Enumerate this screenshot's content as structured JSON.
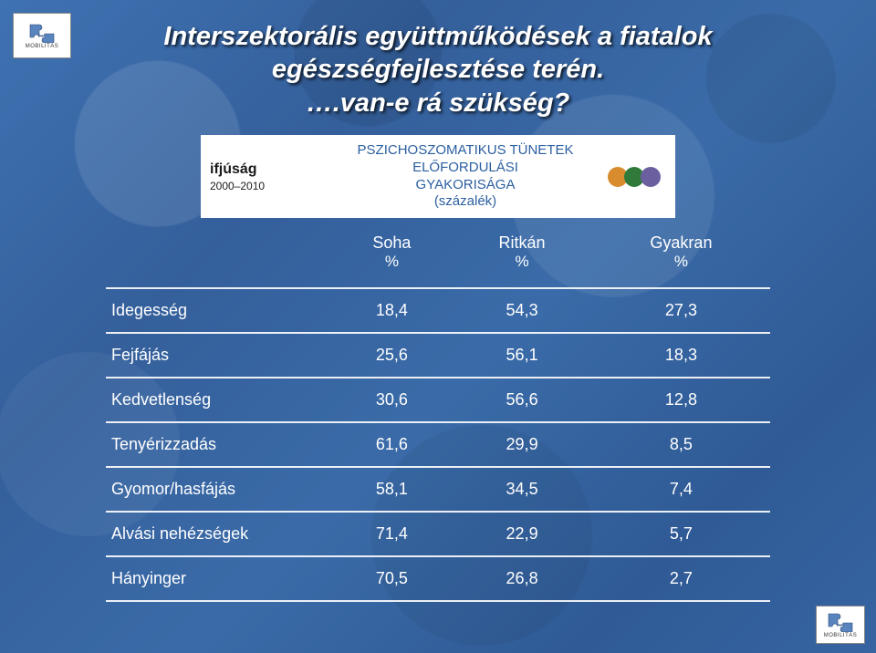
{
  "logo": {
    "label": "MOBILITÁS"
  },
  "title": {
    "line1": "Interszektorális együttműködések a fiatalok",
    "line2": "egészségfejlesztése terén.",
    "line3": "….van-e rá szükség?"
  },
  "subtitle_box": {
    "brand": "ifjúság",
    "years": "2000–2010",
    "heading_l1": "PSZICHOSZOMATIKUS TÜNETEK ELŐFORDULÁSI",
    "heading_l2": "GYAKORISÁGA",
    "heading_l3": "(százalék)",
    "heading_color": "#2b5fa0",
    "avatar_colors": [
      "#d98c2e",
      "#2f7a3a",
      "#6b5fa0"
    ]
  },
  "table": {
    "text_color": "#ffffff",
    "border_color": "rgba(255,255,255,0.9)",
    "fontsize": 18,
    "columns": [
      {
        "label": "",
        "sub": ""
      },
      {
        "label": "Soha",
        "sub": "%"
      },
      {
        "label": "Ritkán",
        "sub": "%"
      },
      {
        "label": "Gyakran",
        "sub": "%"
      }
    ],
    "rows": [
      {
        "name": "Idegesség",
        "soha": "18,4",
        "ritkan": "54,3",
        "gyakran": "27,3"
      },
      {
        "name": "Fejfájás",
        "soha": "25,6",
        "ritkan": "56,1",
        "gyakran": "18,3"
      },
      {
        "name": "Kedvetlenség",
        "soha": "30,6",
        "ritkan": "56,6",
        "gyakran": "12,8"
      },
      {
        "name": "Tenyérizzadás",
        "soha": "61,6",
        "ritkan": "29,9",
        "gyakran": "8,5"
      },
      {
        "name": "Gyomor/hasfájás",
        "soha": "58,1",
        "ritkan": "34,5",
        "gyakran": "7,4"
      },
      {
        "name": "Alvási nehézségek",
        "soha": "71,4",
        "ritkan": "22,9",
        "gyakran": "5,7"
      },
      {
        "name": "Hányinger",
        "soha": "70,5",
        "ritkan": "26,8",
        "gyakran": "2,7"
      }
    ]
  },
  "background": {
    "base_color": "#3a6ba8"
  }
}
